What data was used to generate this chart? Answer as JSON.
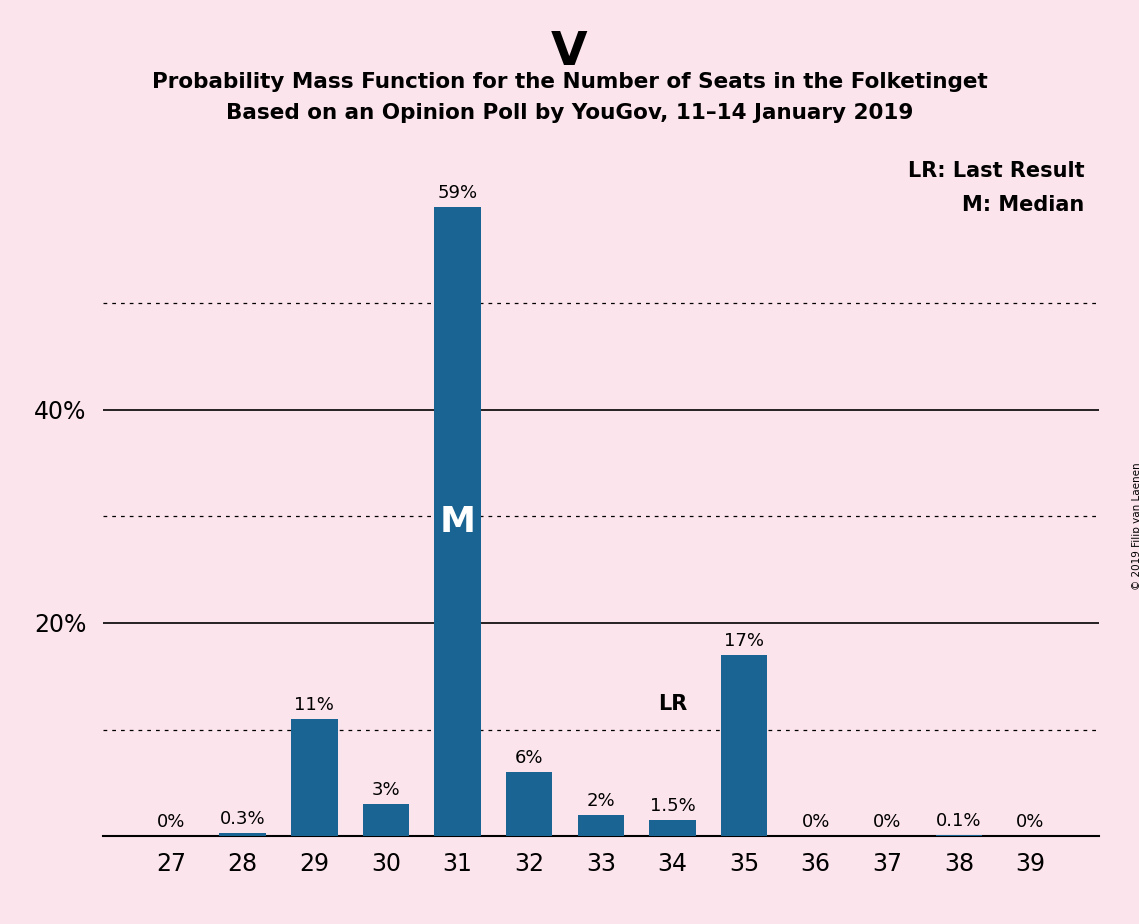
{
  "title_main": "V",
  "title_sub1": "Probability Mass Function for the Number of Seats in the Folketinget",
  "title_sub2": "Based on an Opinion Poll by YouGov, 11–14 January 2019",
  "copyright_text": "© 2019 Filip van Laenen",
  "categories": [
    27,
    28,
    29,
    30,
    31,
    32,
    33,
    34,
    35,
    36,
    37,
    38,
    39
  ],
  "values": [
    0.0,
    0.3,
    11.0,
    3.0,
    59.0,
    6.0,
    2.0,
    1.5,
    17.0,
    0.0,
    0.0,
    0.1,
    0.0
  ],
  "labels": [
    "0%",
    "0.3%",
    "11%",
    "3%",
    "59%",
    "6%",
    "2%",
    "1.5%",
    "17%",
    "0%",
    "0%",
    "0.1%",
    "0%"
  ],
  "bar_color": "#1a6494",
  "background_color": "#fce4ec",
  "median_seat": 31,
  "last_result_seat": 34,
  "dotted_lines": [
    10,
    30,
    50
  ],
  "solid_lines": [
    20,
    40
  ],
  "ylim": [
    0,
    65
  ],
  "ytick_shown": [
    20,
    40
  ],
  "legend_line1": "LR: Last Result",
  "legend_line2": "M: Median"
}
